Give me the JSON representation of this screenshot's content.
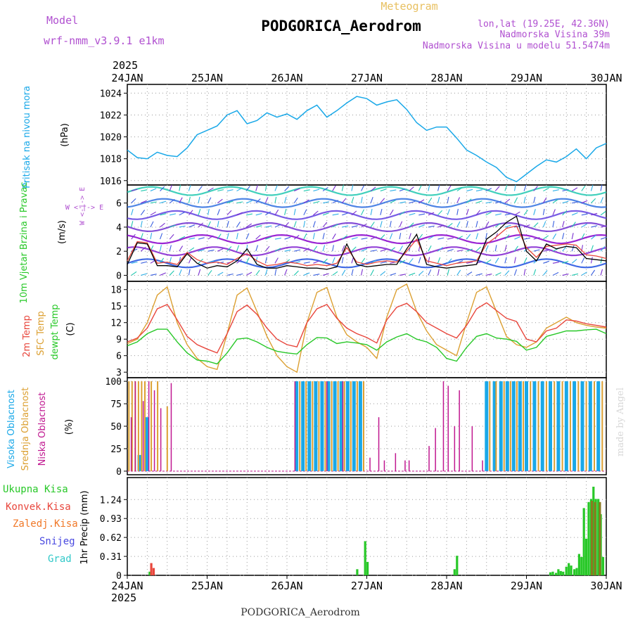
{
  "header": {
    "model_label": "Model",
    "model_name": "wrf-nmm_v3.9.1 e1km",
    "chart_type_label": "Meteogram",
    "station": "PODGORICA_Aerodrom",
    "coords": "lon,lat (19.25E, 42.36N)",
    "elevation": "Nadmorska Visina 39m",
    "model_elevation": "Nadmorska Visina u modelu 51.5474m"
  },
  "footer": {
    "station": "PODGORICA_Aerodrom",
    "credit": "made by Angel"
  },
  "colors": {
    "pressure": "#19a8e8",
    "temp2m": "#e8463c",
    "sfc_temp": "#dca032",
    "dewpoint": "#28c828",
    "cloud_high": "#19a8e8",
    "cloud_mid": "#dca032",
    "cloud_low": "#c01890",
    "precip_total": "#28c828",
    "precip_conv": "#e8463c",
    "precip_frozen": "#f07828",
    "precip_snow": "#4848e0",
    "precip_grad": "#30c8c8",
    "wind_contour": "#8800cc",
    "wind_speed": "#000000",
    "wind_gust": "#e8463c",
    "label_purple": "#b050d0",
    "label_gold": "#e8c060"
  },
  "chart_data": [
    {
      "type": "line",
      "panel": "pressure",
      "ylabel_outer": "Pritisak na nivou mora",
      "ylabel_unit": "(hPa)",
      "ylim": [
        1015.6,
        1024.8
      ],
      "yticks": [
        1016,
        1018,
        1020,
        1022,
        1024
      ],
      "grid": true,
      "x": [
        0,
        0.125,
        0.25,
        0.375,
        0.5,
        0.625,
        0.75,
        0.875,
        1,
        1.125,
        1.25,
        1.375,
        1.5,
        1.625,
        1.75,
        1.875,
        2,
        2.125,
        2.25,
        2.375,
        2.5,
        2.625,
        2.75,
        2.875,
        3,
        3.125,
        3.25,
        3.375,
        3.5,
        3.625,
        3.75,
        3.875,
        4,
        4.125,
        4.25,
        4.375,
        4.5,
        4.625,
        4.75,
        4.875,
        5,
        5.125,
        5.25,
        5.375,
        5.5,
        5.625,
        5.75,
        5.875,
        6
      ],
      "series": [
        {
          "values": [
            1018.8,
            1018.1,
            1018.0,
            1018.6,
            1018.3,
            1018.2,
            1019.0,
            1020.2,
            1020.6,
            1021.0,
            1022.0,
            1022.4,
            1021.2,
            1021.5,
            1022.2,
            1021.8,
            1022.1,
            1021.6,
            1022.4,
            1022.9,
            1021.8,
            1022.4,
            1023.1,
            1023.7,
            1023.5,
            1022.9,
            1023.2,
            1023.4,
            1022.5,
            1021.3,
            1020.6,
            1020.9,
            1020.9,
            1019.9,
            1018.8,
            1018.3,
            1017.7,
            1017.2,
            1016.3,
            1015.9,
            1016.6,
            1017.3,
            1017.9,
            1017.7,
            1018.2,
            1018.9,
            1018.0,
            1019.0,
            1019.4
          ]
        }
      ]
    },
    {
      "type": "line",
      "panel": "wind",
      "ylabel_outer": "10m Vjetar Brzina i Pravac",
      "ylabel_unit": "(m/s)",
      "compass": "W <-|-> E",
      "ylim": [
        -0.5,
        7.5
      ],
      "yticks": [
        0,
        2,
        4,
        6
      ],
      "grid": true,
      "x": [
        0,
        0.125,
        0.25,
        0.375,
        0.5,
        0.625,
        0.75,
        0.875,
        1,
        1.125,
        1.25,
        1.375,
        1.5,
        1.625,
        1.75,
        1.875,
        2,
        2.125,
        2.25,
        2.375,
        2.5,
        2.625,
        2.75,
        2.875,
        3,
        3.125,
        3.25,
        3.375,
        3.5,
        3.625,
        3.75,
        3.875,
        4,
        4.125,
        4.25,
        4.375,
        4.5,
        4.625,
        4.75,
        4.875,
        5,
        5.125,
        5.25,
        5.375,
        5.5,
        5.625,
        5.75,
        5.875,
        6
      ],
      "series": [
        {
          "name": "speed",
          "values": [
            0.9,
            2.7,
            2.6,
            0.8,
            0.8,
            0.7,
            1.8,
            1.0,
            0.6,
            0.8,
            0.7,
            1.2,
            2.2,
            0.9,
            0.6,
            0.6,
            0.8,
            0.7,
            0.6,
            0.6,
            0.5,
            0.7,
            2.6,
            0.9,
            0.7,
            0.8,
            0.9,
            0.9,
            2.2,
            3.4,
            0.9,
            0.7,
            0.6,
            0.7,
            0.8,
            0.9,
            3.0,
            3.6,
            4.4,
            4.9,
            2.0,
            1.2,
            2.6,
            2.2,
            2.4,
            2.3,
            1.4,
            1.3,
            1.2
          ]
        },
        {
          "name": "gust",
          "values": [
            1.2,
            2.8,
            2.7,
            1.0,
            1.1,
            0.9,
            1.9,
            1.3,
            1.0,
            1.1,
            0.9,
            1.4,
            1.8,
            1.2,
            0.8,
            0.9,
            1.1,
            1.0,
            0.8,
            0.9,
            0.8,
            1.0,
            2.3,
            1.1,
            0.9,
            1.1,
            1.2,
            1.1,
            2.0,
            3.0,
            1.2,
            1.0,
            0.8,
            1.0,
            1.1,
            1.2,
            2.6,
            3.2,
            3.9,
            4.1,
            2.3,
            1.5,
            2.4,
            2.5,
            2.6,
            2.5,
            1.7,
            1.6,
            1.4
          ]
        }
      ],
      "contour_levels": [
        1,
        2,
        3,
        4,
        5,
        6,
        7
      ]
    },
    {
      "type": "line",
      "panel": "temperature",
      "ylabel_series": [
        "2m Temp",
        "SFC Temp",
        "dewpt Temp"
      ],
      "ylabel_unit": "(C)",
      "ylim": [
        2,
        19.5
      ],
      "yticks": [
        3,
        6,
        9,
        12,
        15,
        18
      ],
      "grid": true,
      "x": [
        0,
        0.125,
        0.25,
        0.375,
        0.5,
        0.625,
        0.75,
        0.875,
        1,
        1.125,
        1.25,
        1.375,
        1.5,
        1.625,
        1.75,
        1.875,
        2,
        2.125,
        2.25,
        2.375,
        2.5,
        2.625,
        2.75,
        2.875,
        3,
        3.125,
        3.25,
        3.375,
        3.5,
        3.625,
        3.75,
        3.875,
        4,
        4.125,
        4.25,
        4.375,
        4.5,
        4.625,
        4.75,
        4.875,
        5,
        5.125,
        5.25,
        5.375,
        5.5,
        5.625,
        5.75,
        5.875,
        6
      ],
      "series": [
        {
          "name": "2m Temp",
          "values": [
            8.5,
            9.2,
            11.0,
            14.5,
            15.3,
            12.5,
            9.5,
            8.0,
            7.2,
            6.5,
            10.0,
            14.0,
            15.2,
            13.5,
            11.0,
            9.0,
            8.0,
            7.6,
            12.0,
            14.5,
            15.3,
            12.8,
            11.0,
            10.0,
            9.3,
            8.3,
            12.5,
            14.8,
            15.5,
            14.0,
            12.0,
            11.0,
            10.0,
            9.2,
            11.5,
            14.5,
            15.6,
            14.2,
            12.8,
            12.2,
            9.0,
            8.5,
            10.5,
            11.0,
            12.5,
            12.3,
            11.8,
            11.5,
            11.2
          ]
        },
        {
          "name": "SFC Temp",
          "values": [
            8.2,
            9.0,
            12.0,
            17.0,
            18.5,
            12.0,
            8.0,
            5.5,
            4.0,
            3.5,
            10.0,
            17.0,
            18.3,
            14.0,
            9.5,
            6.0,
            4.0,
            3.0,
            12.0,
            17.5,
            18.4,
            13.0,
            9.8,
            8.5,
            7.5,
            5.5,
            13.0,
            18.0,
            19.0,
            14.0,
            10.5,
            8.0,
            7.0,
            6.0,
            12.0,
            17.5,
            18.5,
            14.0,
            9.5,
            8.0,
            7.5,
            8.5,
            11.0,
            12.0,
            13.0,
            12.0,
            11.5,
            11.2,
            11.0
          ]
        },
        {
          "name": "dewpt Temp",
          "values": [
            7.8,
            8.5,
            10.0,
            10.8,
            10.8,
            8.5,
            6.5,
            5.2,
            5.0,
            4.5,
            6.5,
            9.0,
            9.2,
            8.5,
            7.5,
            6.8,
            6.5,
            6.3,
            8.0,
            9.3,
            9.2,
            8.2,
            8.5,
            8.3,
            8.0,
            7.0,
            8.5,
            9.4,
            10.0,
            9.0,
            8.5,
            7.5,
            5.5,
            5.0,
            7.5,
            9.5,
            10.0,
            9.2,
            9.0,
            8.6,
            7.0,
            7.5,
            9.5,
            10.0,
            10.5,
            10.5,
            10.7,
            10.8,
            10.0
          ]
        }
      ]
    },
    {
      "type": "bar",
      "panel": "cloud",
      "ylabel_series": [
        "Visoka Oblacnost",
        "Srednja Oblacnost",
        "Niska Oblacnost"
      ],
      "ylabel_unit": "(%)",
      "ylim": [
        -4,
        104
      ],
      "yticks": [
        0,
        25,
        50,
        75,
        100
      ],
      "grid": true,
      "series": [
        {
          "name": "Visoka Oblacnost",
          "x": [
            0.15,
            0.25,
            2.12,
            2.2,
            2.28,
            2.36,
            2.44,
            2.52,
            2.6,
            2.68,
            2.76,
            2.84,
            2.92,
            4.5,
            4.6,
            4.68,
            4.76,
            4.84,
            4.92,
            5.0,
            5.1,
            5.2,
            5.3,
            5.4,
            5.5,
            5.6,
            5.7,
            5.8,
            5.9
          ],
          "values": [
            18,
            60,
            100,
            100,
            100,
            100,
            100,
            100,
            100,
            100,
            100,
            100,
            100,
            100,
            100,
            100,
            100,
            100,
            100,
            100,
            100,
            100,
            100,
            100,
            100,
            100,
            100,
            100,
            100
          ]
        },
        {
          "name": "Srednja Oblacnost",
          "x": [
            0.02,
            0.06,
            0.1,
            0.14,
            0.18,
            0.22,
            0.3,
            0.38,
            0.5,
            2.16,
            2.24,
            2.32,
            2.4,
            2.48,
            2.56,
            2.64,
            2.72,
            2.8,
            2.88,
            2.96,
            4.54,
            4.62,
            4.72,
            4.8,
            4.88,
            4.96,
            5.05,
            5.15,
            5.25,
            5.35,
            5.45,
            5.55,
            5.65,
            5.75,
            5.85,
            5.95
          ],
          "values": [
            100,
            100,
            100,
            100,
            100,
            100,
            100,
            100,
            72,
            100,
            100,
            100,
            100,
            100,
            100,
            100,
            100,
            100,
            100,
            100,
            100,
            100,
            100,
            100,
            100,
            100,
            100,
            100,
            100,
            100,
            100,
            100,
            100,
            100,
            100,
            100
          ]
        },
        {
          "name": "Niska Oblacnost",
          "x": [
            0.05,
            0.1,
            0.2,
            0.27,
            0.34,
            0.42,
            0.55,
            2.1,
            2.5,
            2.7,
            3.04,
            3.15,
            3.22,
            3.36,
            3.48,
            3.53,
            3.78,
            3.86,
            3.96,
            4.02,
            4.1,
            4.16,
            4.32,
            4.45
          ],
          "values": [
            60,
            100,
            78,
            100,
            90,
            70,
            98,
            100,
            100,
            100,
            15,
            60,
            12,
            20,
            12,
            12,
            28,
            48,
            100,
            95,
            50,
            90,
            50,
            12
          ]
        }
      ]
    },
    {
      "type": "bar",
      "panel": "precip",
      "ylabel_series": [
        "Ukupna Kisa",
        "Konvek.Kisa",
        "Zaledj.Kisa",
        "Snijeg",
        "Grad"
      ],
      "ylabel_unit": "1hr Precip (mm)",
      "ylim": [
        0,
        1.6
      ],
      "yticks": [
        0,
        0.31,
        0.62,
        0.93,
        1.24
      ],
      "grid": true,
      "series": [
        {
          "name": "Ukupna Kisa",
          "x": [
            0.28,
            2.88,
            2.98,
            3.01,
            4.1,
            4.13,
            5.3,
            5.33,
            5.37,
            5.4,
            5.43,
            5.46,
            5.5,
            5.53,
            5.56,
            5.6,
            5.63,
            5.66,
            5.69,
            5.72,
            5.75,
            5.78,
            5.81,
            5.84,
            5.87,
            5.9,
            5.93,
            5.96
          ],
          "values": [
            0.06,
            0.1,
            0.56,
            0.22,
            0.1,
            0.32,
            0.05,
            0.06,
            0.04,
            0.1,
            0.07,
            0.06,
            0.14,
            0.2,
            0.16,
            0.1,
            0.12,
            0.35,
            0.3,
            1.1,
            0.6,
            1.2,
            1.25,
            1.45,
            1.25,
            1.25,
            1.0,
            0.3
          ]
        },
        {
          "name": "Konvek.Kisa",
          "x": [
            0.3,
            0.33
          ],
          "values": [
            0.2,
            0.12
          ]
        },
        {
          "name": "Zaledj.Kisa",
          "x": [
            5.82,
            5.86,
            5.92
          ],
          "values": [
            1.22,
            1.2,
            1.2
          ]
        }
      ]
    }
  ],
  "time_axis": {
    "year": "2025",
    "labels": [
      "24JAN",
      "25JAN",
      "26JAN",
      "27JAN",
      "28JAN",
      "29JAN",
      "30JAN"
    ]
  }
}
